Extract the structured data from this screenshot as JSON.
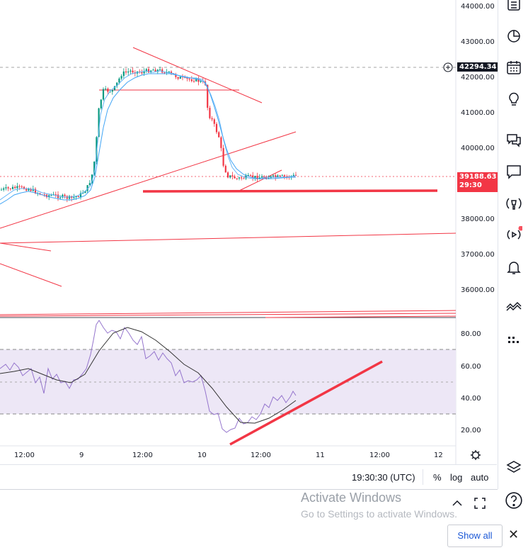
{
  "price_axis": {
    "ticks": [
      "44000.00",
      "43000.00",
      "42000.00",
      "41000.00",
      "40000.00",
      "38000.00",
      "37000.00",
      "36000.00"
    ],
    "crosshair_price": "42294.34",
    "last_price": "39188.63",
    "countdown": "29:30"
  },
  "rsi_axis": {
    "ticks": [
      "80.00",
      "60.00",
      "40.00",
      "20.00"
    ]
  },
  "time_axis": {
    "ticks": [
      "12:00",
      "9",
      "12:00",
      "10",
      "12:00",
      "11",
      "12:00",
      "12"
    ]
  },
  "bottom_bar": {
    "clock": "19:30:30 (UTC)",
    "percent": "%",
    "log": "log",
    "auto": "auto"
  },
  "windows_notice": {
    "line1": "Activate Windows",
    "line2": "Go to Settings to activate Windows."
  },
  "footer": {
    "show_all": "Show all",
    "close": "✕"
  },
  "toolbar_icons": [
    "list-icon",
    "clock-icon",
    "calendar-icon",
    "lightbulb-icon",
    "chat-bubbles-icon",
    "chat-icon",
    "broadcast-icon",
    "play-icon",
    "bell-icon",
    "chart-lines-icon",
    "dots-icon",
    "layers-icon",
    "help-icon"
  ],
  "colors": {
    "bear": "#f23645",
    "bull": "#089981",
    "ema": "#42a5f5",
    "rsi": "#7e57c2",
    "rsi_band": "#ede7f6",
    "trendline": "#f23645"
  }
}
